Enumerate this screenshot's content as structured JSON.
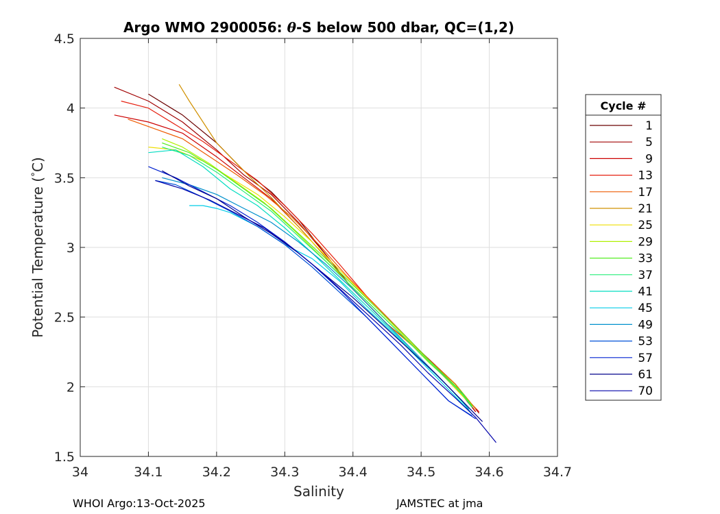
{
  "chart_data": {
    "type": "line",
    "title_prefix": "Argo WMO 2900056: ",
    "title_symbol": "θ",
    "title_suffix": "-S below 500 dbar,  QC=(1,2)",
    "xlabel": "Salinity",
    "ylabel_prefix": "Potential Temperature (",
    "ylabel_degree": "°",
    "ylabel_suffix": "C)",
    "xlim": [
      34,
      34.7
    ],
    "ylim": [
      1.5,
      4.5
    ],
    "x_ticks": [
      "34",
      "34.1",
      "34.2",
      "34.3",
      "34.4",
      "34.5",
      "34.6",
      "34.7"
    ],
    "y_ticks": [
      "1.5",
      "2",
      "2.5",
      "3",
      "3.5",
      "4",
      "4.5"
    ],
    "grid": true,
    "legend": {
      "title": "Cycle #",
      "position": "right",
      "entries": [
        {
          "label": "1",
          "color": "#6a0000"
        },
        {
          "label": "5",
          "color": "#a00000"
        },
        {
          "label": "9",
          "color": "#cc0000"
        },
        {
          "label": "13",
          "color": "#e62010"
        },
        {
          "label": "17",
          "color": "#ee5a00"
        },
        {
          "label": "21",
          "color": "#d09000"
        },
        {
          "label": "25",
          "color": "#eedd00"
        },
        {
          "label": "29",
          "color": "#b0f000"
        },
        {
          "label": "33",
          "color": "#55ee22"
        },
        {
          "label": "37",
          "color": "#22ee77"
        },
        {
          "label": "41",
          "color": "#00dcc0"
        },
        {
          "label": "45",
          "color": "#00cce8"
        },
        {
          "label": "49",
          "color": "#0090cc"
        },
        {
          "label": "53",
          "color": "#0050d8"
        },
        {
          "label": "57",
          "color": "#0020d0"
        },
        {
          "label": "61",
          "color": "#00008a"
        },
        {
          "label": "70",
          "color": "#0000aa"
        }
      ]
    },
    "series": [
      {
        "name": "1",
        "x": [
          34.1,
          34.15,
          34.2,
          34.24,
          34.28,
          34.32,
          34.36,
          34.4,
          34.45,
          34.5,
          34.55,
          34.58
        ],
        "y": [
          4.1,
          3.95,
          3.75,
          3.55,
          3.4,
          3.2,
          2.95,
          2.7,
          2.45,
          2.25,
          2.0,
          1.82
        ]
      },
      {
        "name": "5",
        "x": [
          34.05,
          34.1,
          34.15,
          34.2,
          34.24,
          34.28,
          34.32,
          34.36,
          34.4,
          34.45,
          34.5,
          34.55,
          34.585
        ],
        "y": [
          4.15,
          4.05,
          3.9,
          3.7,
          3.52,
          3.38,
          3.18,
          2.95,
          2.7,
          2.45,
          2.25,
          2.02,
          1.81
        ]
      },
      {
        "name": "9",
        "x": [
          34.05,
          34.1,
          34.15,
          34.2,
          34.24,
          34.28,
          34.32,
          34.36,
          34.4,
          34.45,
          34.5,
          34.55,
          34.58
        ],
        "y": [
          3.95,
          3.9,
          3.82,
          3.65,
          3.5,
          3.35,
          3.15,
          2.93,
          2.7,
          2.45,
          2.25,
          2.02,
          1.82
        ]
      },
      {
        "name": "13",
        "x": [
          34.06,
          34.1,
          34.14,
          34.18,
          34.22,
          34.26,
          34.3,
          34.34,
          34.38,
          34.42,
          34.46,
          34.5,
          34.54,
          34.585
        ],
        "y": [
          4.05,
          4.0,
          3.88,
          3.76,
          3.62,
          3.48,
          3.3,
          3.1,
          2.88,
          2.65,
          2.45,
          2.25,
          2.05,
          1.82
        ]
      },
      {
        "name": "17",
        "x": [
          34.07,
          34.11,
          34.15,
          34.19,
          34.23,
          34.27,
          34.31,
          34.35,
          34.39,
          34.43,
          34.47,
          34.51,
          34.55,
          34.58
        ],
        "y": [
          3.92,
          3.85,
          3.78,
          3.65,
          3.52,
          3.38,
          3.22,
          3.02,
          2.8,
          2.6,
          2.4,
          2.2,
          2.02,
          1.84
        ]
      },
      {
        "name": "21",
        "x": [
          34.145,
          34.16,
          34.18,
          34.2,
          34.22,
          34.25,
          34.28,
          34.32,
          34.36,
          34.4,
          34.45,
          34.5,
          34.55,
          34.58
        ],
        "y": [
          4.17,
          4.05,
          3.9,
          3.75,
          3.65,
          3.5,
          3.36,
          3.15,
          2.93,
          2.7,
          2.45,
          2.24,
          2.02,
          1.84
        ]
      },
      {
        "name": "25",
        "x": [
          34.1,
          34.14,
          34.18,
          34.22,
          34.26,
          34.3,
          34.34,
          34.38,
          34.42,
          34.46,
          34.5,
          34.54,
          34.575
        ],
        "y": [
          3.72,
          3.7,
          3.62,
          3.5,
          3.38,
          3.22,
          3.04,
          2.84,
          2.64,
          2.44,
          2.24,
          2.04,
          1.86
        ]
      },
      {
        "name": "29",
        "x": [
          34.12,
          34.15,
          34.19,
          34.23,
          34.27,
          34.31,
          34.35,
          34.39,
          34.43,
          34.47,
          34.51,
          34.55,
          34.575
        ],
        "y": [
          3.78,
          3.72,
          3.6,
          3.46,
          3.32,
          3.14,
          2.95,
          2.76,
          2.57,
          2.38,
          2.18,
          2.0,
          1.86
        ]
      },
      {
        "name": "33",
        "x": [
          34.12,
          34.16,
          34.2,
          34.24,
          34.28,
          34.32,
          34.36,
          34.4,
          34.44,
          34.48,
          34.52,
          34.56,
          34.575
        ],
        "y": [
          3.75,
          3.68,
          3.56,
          3.42,
          3.28,
          3.1,
          2.92,
          2.73,
          2.54,
          2.35,
          2.15,
          1.96,
          1.86
        ]
      },
      {
        "name": "37",
        "x": [
          34.12,
          34.16,
          34.2,
          34.24,
          34.28,
          34.32,
          34.36,
          34.4,
          34.44,
          34.48,
          34.52,
          34.56,
          34.575
        ],
        "y": [
          3.72,
          3.66,
          3.54,
          3.4,
          3.26,
          3.08,
          2.9,
          2.71,
          2.52,
          2.33,
          2.14,
          1.95,
          1.85
        ]
      },
      {
        "name": "41",
        "x": [
          34.1,
          34.14,
          34.18,
          34.22,
          34.26,
          34.3,
          34.34,
          34.38,
          34.42,
          34.46,
          34.5,
          34.54,
          34.57
        ],
        "y": [
          3.68,
          3.7,
          3.58,
          3.42,
          3.3,
          3.14,
          2.96,
          2.77,
          2.58,
          2.39,
          2.19,
          2.0,
          1.84
        ]
      },
      {
        "name": "45",
        "x": [
          34.16,
          34.18,
          34.2,
          34.22,
          34.26,
          34.3,
          34.34,
          34.38,
          34.42,
          34.46,
          34.5,
          34.54,
          34.57
        ],
        "y": [
          3.3,
          3.3,
          3.28,
          3.25,
          3.15,
          3.02,
          2.92,
          2.76,
          2.56,
          2.38,
          2.18,
          1.98,
          1.83
        ]
      },
      {
        "name": "49",
        "x": [
          34.12,
          34.16,
          34.2,
          34.24,
          34.28,
          34.32,
          34.36,
          34.4,
          34.44,
          34.48,
          34.52,
          34.56,
          34.575
        ],
        "y": [
          3.5,
          3.45,
          3.38,
          3.28,
          3.18,
          3.04,
          2.88,
          2.7,
          2.5,
          2.3,
          2.1,
          1.9,
          1.8
        ]
      },
      {
        "name": "53",
        "x": [
          34.11,
          34.14,
          34.18,
          34.22,
          34.26,
          34.3,
          34.34,
          34.38,
          34.42,
          34.46,
          34.5,
          34.54,
          34.575
        ],
        "y": [
          3.48,
          3.45,
          3.36,
          3.26,
          3.15,
          3.02,
          2.86,
          2.68,
          2.5,
          2.3,
          2.1,
          1.9,
          1.79
        ]
      },
      {
        "name": "57",
        "x": [
          34.1,
          34.14,
          34.18,
          34.22,
          34.26,
          34.3,
          34.34,
          34.38,
          34.42,
          34.46,
          34.5,
          34.54,
          34.58
        ],
        "y": [
          3.58,
          3.5,
          3.4,
          3.3,
          3.18,
          3.04,
          2.88,
          2.7,
          2.5,
          2.3,
          2.1,
          1.9,
          1.77
        ]
      },
      {
        "name": "61",
        "x": [
          34.12,
          34.16,
          34.2,
          34.24,
          34.28,
          34.32,
          34.36,
          34.4,
          34.44,
          34.48,
          34.52,
          34.56,
          34.59
        ],
        "y": [
          3.55,
          3.44,
          3.35,
          3.22,
          3.1,
          2.96,
          2.8,
          2.64,
          2.46,
          2.28,
          2.1,
          1.9,
          1.75
        ]
      },
      {
        "name": "70",
        "x": [
          34.11,
          34.15,
          34.19,
          34.23,
          34.27,
          34.31,
          34.35,
          34.39,
          34.43,
          34.47,
          34.51,
          34.55,
          34.58,
          34.61
        ],
        "y": [
          3.48,
          3.42,
          3.34,
          3.24,
          3.14,
          3.0,
          2.84,
          2.66,
          2.48,
          2.3,
          2.1,
          1.92,
          1.78,
          1.6
        ]
      }
    ]
  },
  "footer": {
    "left": "WHOI Argo:13-Oct-2025",
    "right": "JAMSTEC at jma"
  }
}
